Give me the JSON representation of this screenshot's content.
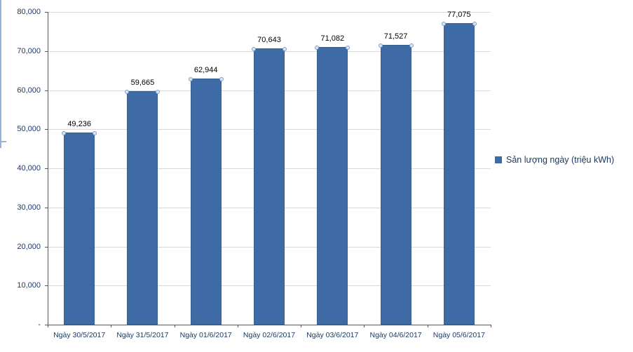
{
  "chart_data": {
    "type": "bar",
    "title": "",
    "xlabel": "",
    "ylabel": "",
    "categories": [
      "Ngày 30/5/2017",
      "Ngày 31/5/2017",
      "Ngày 01/6/2017",
      "Ngày 02/6/2017",
      "Ngày 03/6/2017",
      "Ngày 04/6/2017",
      "Ngày 05/6/2017"
    ],
    "values": [
      49236,
      59665,
      62944,
      70643,
      71082,
      71527,
      77075
    ],
    "value_labels": [
      "49,236",
      "59,665",
      "62,944",
      "70,643",
      "71,082",
      "71,527",
      "77,075"
    ],
    "ylim": [
      0,
      80000
    ],
    "ytick_interval": 10000,
    "ytick_labels": [
      "-",
      "10,000",
      "20,000",
      "30,000",
      "40,000",
      "50,000",
      "60,000",
      "70,000",
      "80,000"
    ],
    "grid": "horizontal",
    "legend_position": "right",
    "legend": {
      "label": "Sản lượng ngày (triệu  kWh)",
      "swatch_color": "#3e6ba5"
    },
    "colors": {
      "bar_fill": "#3e6ba5",
      "bar_border": "#35608f",
      "marker_fill": "#dce6f1",
      "marker_border": "#77a2d1",
      "gridline": "#d9d9d9",
      "axis": "#595959",
      "y_label_text": "#1f3864",
      "x_label_text": "#17375e",
      "value_label_text": "#000000"
    }
  }
}
